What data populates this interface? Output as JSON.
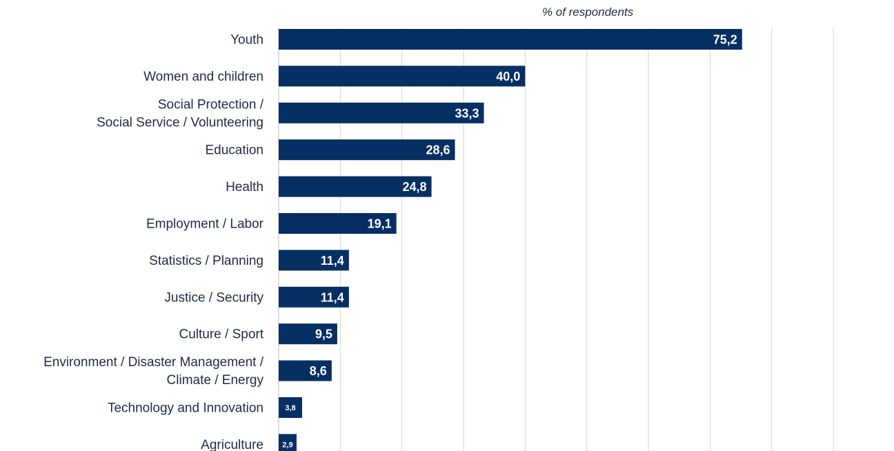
{
  "chart_data": {
    "type": "bar",
    "orientation": "horizontal",
    "subtitle": "% of respondents",
    "categories": [
      [
        "Youth"
      ],
      [
        "Women and children"
      ],
      [
        "Social  Protection /",
        "Social Service / Volunteering"
      ],
      [
        "Education"
      ],
      [
        "Health"
      ],
      [
        "Employment / Labor"
      ],
      [
        "Statistics / Planning"
      ],
      [
        "Justice / Security"
      ],
      [
        "Culture / Sport"
      ],
      [
        "Environment / Disaster Management /",
        "Climate / Energy"
      ],
      [
        "Technology and Innovation"
      ],
      [
        "Agriculture"
      ]
    ],
    "values": [
      75.2,
      40.0,
      33.3,
      28.6,
      24.8,
      19.1,
      11.4,
      11.4,
      9.5,
      8.6,
      3.8,
      2.9
    ],
    "value_labels": [
      "75,2",
      "40,0",
      "33,3",
      "28,6",
      "24,8",
      "19,1",
      "11,4",
      "11,4",
      "9,5",
      "8,6",
      "3,8",
      "2,9"
    ],
    "xlim": [
      0,
      90
    ],
    "grid": true,
    "colors": {
      "bar": "#062f63",
      "grid": "#d9d2c5",
      "label_text": "#1f2a44"
    }
  }
}
